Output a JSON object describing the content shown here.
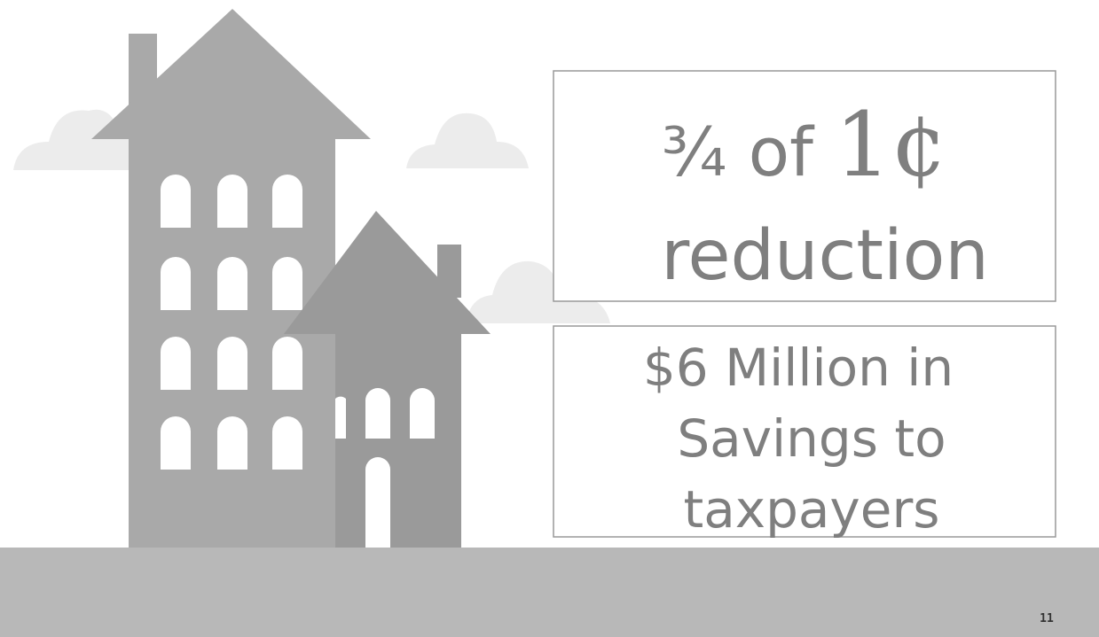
{
  "headline": {
    "fraction_text": "¾ of",
    "amount": "1¢",
    "second_line": "reduction"
  },
  "savings": {
    "lines": [
      "$6 Million in",
      "Savings to",
      "taxpayers"
    ]
  },
  "page_number": "11"
}
